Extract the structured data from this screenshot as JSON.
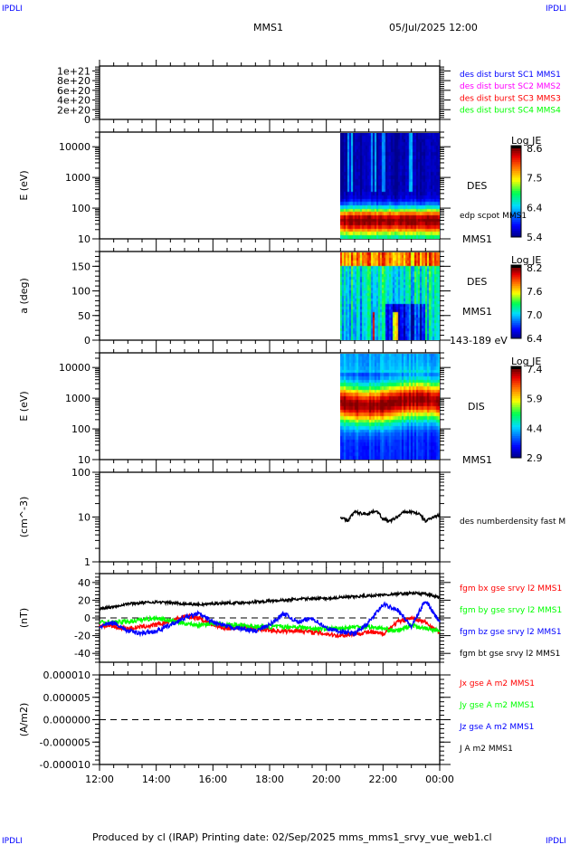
{
  "header": {
    "corner_label": "IPDLI",
    "title": "MMS1",
    "datetime": "05/Jul/2025 12:00"
  },
  "footer": {
    "text": "Produced by cl (IRAP)   Printing date: 02/Sep/2025   mms_mms1_srvy_vue_web1.cl"
  },
  "colors": {
    "red": "#ff0000",
    "green": "#00ff00",
    "blue": "#0000ff",
    "magenta": "#ff00ff",
    "black": "#000000"
  },
  "chart_data": [
    {
      "type": "line",
      "ylim": [
        0,
        1.1e+21
      ],
      "yticks": [
        "0",
        "2e+20",
        "4e+20",
        "6e+20",
        "8e+20",
        "1e+21"
      ],
      "ytick_values": [
        0,
        2e+20,
        4e+20,
        6e+20,
        8e+20,
        1e+21
      ],
      "zero_line": "dashed",
      "legend": [
        {
          "name": "des dist burst SC1 MMS1",
          "color": "#0000ff"
        },
        {
          "name": "des dist burst SC2 MMS2",
          "color": "#ff00ff"
        },
        {
          "name": "des dist burst SC3 MMS3",
          "color": "#ff0000"
        },
        {
          "name": "des dist burst SC4 MMS4",
          "color": "#00ff00"
        }
      ]
    },
    {
      "type": "heatmap",
      "ylabel": "E (eV)",
      "yscale": "log",
      "ylim": [
        10,
        30000
      ],
      "yticks": [
        "10",
        "100",
        "1000",
        "10000"
      ],
      "ytick_values": [
        10,
        100,
        1000,
        10000
      ],
      "data_start": "20:30",
      "data_end": "00:00",
      "peak_energy_eV": 40,
      "colorbar": {
        "label": "Log JE",
        "ticks": [
          "5.4",
          "6.4",
          "7.5",
          "8.6"
        ],
        "range": [
          5.4,
          8.6
        ]
      },
      "right_labels": [
        "DES",
        "edp scpot MMS1",
        "MMS1"
      ]
    },
    {
      "type": "heatmap",
      "ylabel": "a (deg)",
      "yscale": "linear",
      "ylim": [
        0,
        180
      ],
      "yticks": [
        "0",
        "50",
        "100",
        "150"
      ],
      "ytick_values": [
        0,
        50,
        100,
        150
      ],
      "data_start": "20:30",
      "data_end": "00:00",
      "colorbar": {
        "label": "Log JE",
        "ticks": [
          "6.4",
          "7.0",
          "7.6",
          "8.2"
        ],
        "range": [
          6.4,
          8.2
        ]
      },
      "right_labels": [
        "DES",
        "MMS1",
        "143-189 eV"
      ]
    },
    {
      "type": "heatmap",
      "ylabel": "E (eV)",
      "yscale": "log",
      "ylim": [
        10,
        30000
      ],
      "yticks": [
        "10",
        "100",
        "1000",
        "10000"
      ],
      "ytick_values": [
        10,
        100,
        1000,
        10000
      ],
      "data_start": "20:30",
      "data_end": "00:00",
      "peak_energy_eV": 600,
      "colorbar": {
        "label": "Log JE",
        "ticks": [
          "2.9",
          "4.4",
          "5.9",
          "7.4"
        ],
        "range": [
          2.9,
          7.4
        ]
      },
      "right_labels": [
        "DIS",
        "MMS1"
      ]
    },
    {
      "type": "line",
      "ylabel": "(cm^-3)",
      "yscale": "log",
      "ylim": [
        1,
        100
      ],
      "yticks": [
        "1",
        "10",
        "100"
      ],
      "ytick_values": [
        1,
        10,
        100
      ],
      "series": [
        {
          "name": "des numberdensity fast M",
          "color": "#000000",
          "x": [
            "20:30",
            "20:45",
            "21:00",
            "21:15",
            "21:30",
            "21:45",
            "22:00",
            "22:15",
            "22:30",
            "22:45",
            "23:00",
            "23:15",
            "23:30",
            "23:45",
            "00:00"
          ],
          "values": [
            10,
            8,
            13,
            12,
            12,
            14,
            9,
            8,
            10,
            13,
            13,
            12,
            8,
            10,
            11
          ]
        }
      ]
    },
    {
      "type": "line",
      "ylabel": "(nT)",
      "ylim": [
        -50,
        50
      ],
      "yticks": [
        "-40",
        "-20",
        "0",
        "20",
        "40"
      ],
      "ytick_values": [
        -40,
        -20,
        0,
        20,
        40
      ],
      "zero_line": "dashed",
      "x": [
        "12:00",
        "12:30",
        "13:00",
        "13:30",
        "14:00",
        "14:30",
        "15:00",
        "15:30",
        "16:00",
        "16:30",
        "17:00",
        "17:30",
        "18:00",
        "18:30",
        "19:00",
        "19:30",
        "20:00",
        "20:30",
        "21:00",
        "21:30",
        "22:00",
        "22:30",
        "23:00",
        "23:30",
        "00:00"
      ],
      "series": [
        {
          "name": "fgm bx gse srvy l2 MMS1",
          "color": "#ff0000",
          "values": [
            -8,
            -10,
            -12,
            -10,
            -8,
            -4,
            2,
            0,
            -8,
            -12,
            -10,
            -12,
            -14,
            -15,
            -14,
            -16,
            -18,
            -20,
            -18,
            -16,
            -18,
            -5,
            0,
            -5,
            -17
          ]
        },
        {
          "name": "fgm by gse srvy l2 MMS1",
          "color": "#00ff00",
          "values": [
            -5,
            -5,
            -4,
            -2,
            0,
            -3,
            -6,
            -8,
            -6,
            -8,
            -8,
            -10,
            -10,
            -10,
            -10,
            -12,
            -12,
            -12,
            -10,
            -10,
            -12,
            -15,
            -8,
            -12,
            -15
          ]
        },
        {
          "name": "fgm bz gse srvy l2 MMS1",
          "color": "#0000ff",
          "values": [
            -10,
            -5,
            -15,
            -17,
            -15,
            -8,
            0,
            5,
            -5,
            -10,
            -12,
            -15,
            -8,
            5,
            -5,
            0,
            -12,
            -15,
            -18,
            -5,
            15,
            10,
            -10,
            20,
            -5
          ]
        },
        {
          "name": "fgm bt gse srvy l2 MMS1",
          "color": "#000000",
          "values": [
            10,
            13,
            16,
            17,
            18,
            17,
            16,
            15,
            16,
            17,
            17,
            18,
            19,
            20,
            21,
            22,
            22,
            23,
            24,
            25,
            26,
            27,
            28,
            27,
            23
          ]
        }
      ]
    },
    {
      "type": "line",
      "ylabel": "(A/m2)",
      "ylim": [
        -1e-05,
        1e-05
      ],
      "yticks": [
        "-0.000010",
        "-0.000005",
        "0.000000",
        "0.000005",
        "0.000010"
      ],
      "ytick_values": [
        -1e-05,
        -5e-06,
        0,
        5e-06,
        1e-05
      ],
      "zero_line": "dashed",
      "legend": [
        {
          "name": "Jx gse A m2 MMS1",
          "color": "#ff0000"
        },
        {
          "name": "Jy gse A m2 MMS1",
          "color": "#00ff00"
        },
        {
          "name": "Jz gse A m2 MMS1",
          "color": "#0000ff"
        },
        {
          "name": "J A m2 MMS1",
          "color": "#000000"
        }
      ]
    }
  ],
  "xaxis": {
    "range": [
      "12:00",
      "00:00"
    ],
    "ticks": [
      "12:00",
      "14:00",
      "16:00",
      "18:00",
      "20:00",
      "22:00",
      "00:00"
    ]
  }
}
